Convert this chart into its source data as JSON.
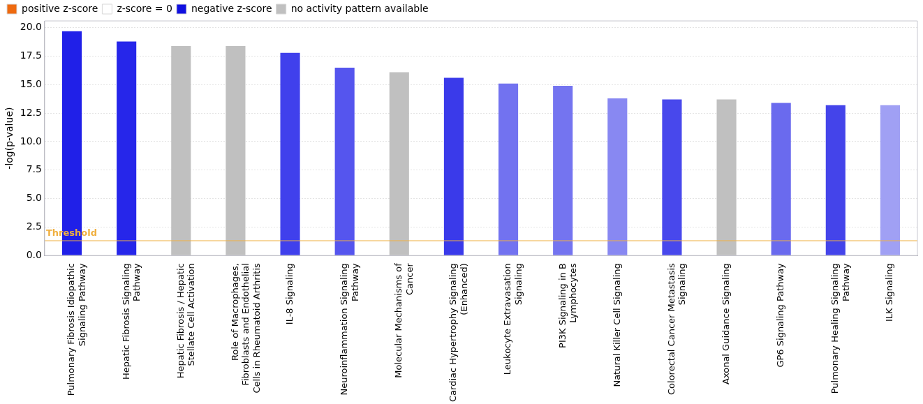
{
  "chart_data": {
    "type": "bar",
    "ylabel": "-log(p-value)",
    "categories": [
      "Pulmonary Fibrosis Idiopathic Signaling Pathway",
      "Hepatic Fibrosis Signaling Pathway",
      "Hepatic Fibrosis / Hepatic Stellate Cell Activation",
      "Role of Macrophages, Fibroblasts and Endothelial Cells in Rheumatoid Arthritis",
      "IL-8 Signaling",
      "Neuroinflammation Signaling Pathway",
      "Molecular Mechanisms of Cancer",
      "Cardiac Hypertrophy Signaling (Enhanced)",
      "Leukocyte Extravasation Signaling",
      "PI3K Signaling in B Lymphocytes",
      "Natural Killer Cell Signaling",
      "Colorectal Cancer Metastasis Signaling",
      "Axonal Guidance Signaling",
      "GP6 Signaling Pathway",
      "Pulmonary Healing Signaling Pathway",
      "ILK Signaling"
    ],
    "series": [
      {
        "name": "positive z-score",
        "color": "#ee6a10",
        "values": [
          null,
          null,
          null,
          null,
          null,
          null,
          null,
          null,
          null,
          null,
          null,
          null,
          null,
          null,
          null,
          null
        ]
      },
      {
        "name": "z-score = 0",
        "color": "#ffffff",
        "values": [
          null,
          null,
          null,
          null,
          null,
          null,
          null,
          null,
          null,
          null,
          null,
          null,
          null,
          null,
          null,
          null
        ]
      },
      {
        "name": "negative z-score",
        "color": "#1010e0",
        "values": [
          19.7,
          18.8,
          null,
          null,
          17.8,
          16.5,
          null,
          15.6,
          15.1,
          14.9,
          13.8,
          13.7,
          null,
          13.4,
          13.2,
          13.2
        ],
        "colors": [
          "#2020e8",
          "#2626ea",
          "#c0c0c0",
          "#c0c0c0",
          "#4040ec",
          "#5555ee",
          "#c0c0c0",
          "#3a3aea",
          "#7272f0",
          "#7474f0",
          "#8888f2",
          "#4848ec",
          "#c0c0c0",
          "#6a6aee",
          "#4444ea",
          "#a0a0f4"
        ]
      },
      {
        "name": "no activity pattern available",
        "color": "#c0c0c0",
        "values": [
          null,
          null,
          18.4,
          18.4,
          null,
          null,
          16.1,
          null,
          null,
          null,
          null,
          null,
          13.7,
          null,
          null,
          null
        ]
      }
    ],
    "ylim": [
      0,
      20.6
    ],
    "yticks": [
      {
        "value": 0,
        "label": "0.0"
      },
      {
        "value": 2.5,
        "label": "2.5"
      },
      {
        "value": 5,
        "label": "5.0"
      },
      {
        "value": 7.5,
        "label": "7.5"
      },
      {
        "value": 10,
        "label": "10.0"
      },
      {
        "value": 12.5,
        "label": "12.5"
      },
      {
        "value": 15,
        "label": "15.0"
      },
      {
        "value": 17.5,
        "label": "17.5"
      },
      {
        "value": 20,
        "label": "20.0"
      }
    ],
    "ref_lines": [
      {
        "axis": "y",
        "value": 1.3,
        "label": "Threshold",
        "color": "#f0b040"
      }
    ],
    "grid": "y",
    "legend": "top left"
  }
}
